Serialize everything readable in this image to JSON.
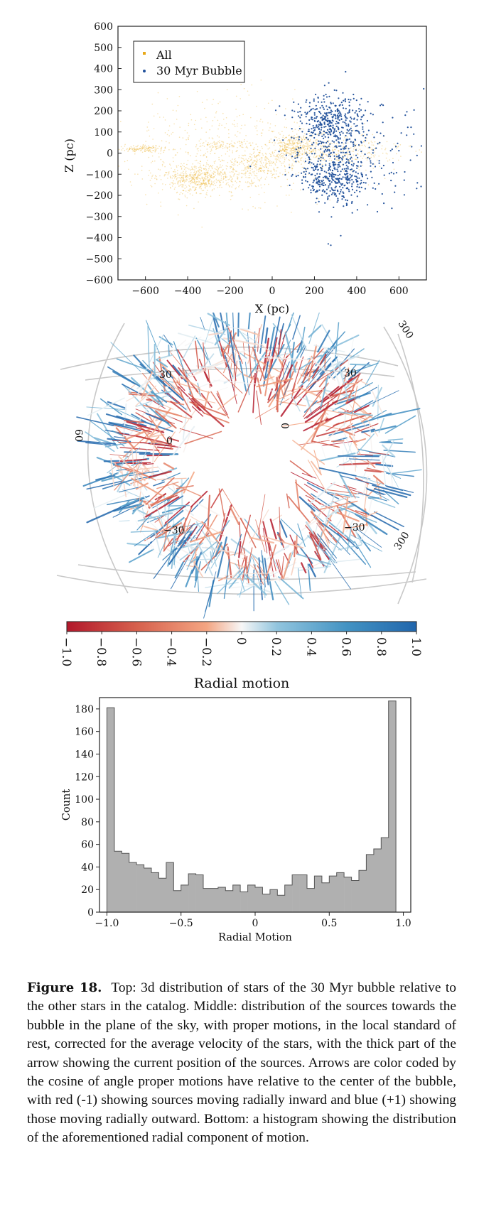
{
  "figure": {
    "caption_label": "Figure 18.",
    "caption_text": "Top: 3d distribution of stars of the 30 Myr bubble relative to the other stars in the catalog. Middle: distribution of the sources towards the bubble in the plane of the sky, with proper motions, in the local standard of rest, corrected for the average velocity of the stars, with the thick part of the arrow showing the current position of the sources. Arrows are color coded by the cosine of angle proper motions have relative to the center of the bubble, with red (-1) showing sources moving radially inward and blue (+1) showing those moving radially outward. Bottom: a histogram showing the distribution of the aforementioned radial component of motion."
  },
  "colors": {
    "all": "#e8a818",
    "bubble": "#1f4f9a",
    "hist_fill": "#b0b0b0",
    "red": "#b2182b",
    "blue": "#2166ac"
  },
  "chart_data": [
    {
      "type": "scatter",
      "xlabel": "X (pc)",
      "ylabel": "Z (pc)",
      "xlim": [
        -730,
        730
      ],
      "ylim": [
        -600,
        600
      ],
      "xticks": [
        "−600",
        "−400",
        "−200",
        "0",
        "200",
        "400",
        "600"
      ],
      "xtick_values": [
        -600,
        -400,
        -200,
        0,
        200,
        400,
        600
      ],
      "yticks": [
        "600",
        "500",
        "400",
        "300",
        "200",
        "100",
        "0",
        "−100",
        "−200",
        "−300",
        "−400",
        "−500",
        "−600"
      ],
      "ytick_values": [
        600,
        500,
        400,
        300,
        200,
        100,
        0,
        -100,
        -200,
        -300,
        -400,
        -500,
        -600
      ],
      "legend_position": "top-left",
      "series": [
        {
          "name": "All",
          "clusters": [
            {
              "x": -350,
              "z": -120,
              "sx": 90,
              "sz": 35,
              "n": 500
            },
            {
              "x": -80,
              "z": -60,
              "sx": 70,
              "sz": 40,
              "n": 260
            },
            {
              "x": 100,
              "z": 30,
              "sx": 50,
              "sz": 30,
              "n": 300
            },
            {
              "x": 300,
              "z": 10,
              "sx": 150,
              "sz": 40,
              "n": 350
            },
            {
              "x": -600,
              "z": 20,
              "sx": 60,
              "sz": 8,
              "n": 120
            },
            {
              "x": -200,
              "z": 0,
              "sx": 250,
              "sz": 120,
              "n": 550
            },
            {
              "x": -250,
              "z": 40,
              "sx": 60,
              "sz": 10,
              "n": 80
            }
          ]
        },
        {
          "name": "30 Myr Bubble",
          "clusters": [
            {
              "x": 270,
              "z": 140,
              "sx": 80,
              "sz": 70,
              "n": 380
            },
            {
              "x": 290,
              "z": -120,
              "sx": 80,
              "sz": 60,
              "n": 360
            },
            {
              "x": 400,
              "z": 0,
              "sx": 160,
              "sz": 130,
              "n": 170
            }
          ]
        }
      ]
    },
    {
      "type": "quiver",
      "colorbar_label": "Radial motion",
      "colorbar_range": [
        -1.0,
        1.0
      ],
      "colorbar_ticks": [
        "−1.0",
        "−0.8",
        "−0.6",
        "−0.4",
        "−0.2",
        "0",
        "0.2",
        "0.4",
        "0.6",
        "0.8",
        "1.0"
      ],
      "colorbar_tick_values": [
        -1.0,
        -0.8,
        -0.6,
        -0.4,
        -0.2,
        0,
        0.2,
        0.4,
        0.6,
        0.8,
        1.0
      ],
      "grid_labels": [
        "30",
        "30",
        "0",
        "0",
        "60",
        "−30",
        "−30",
        "300",
        "300"
      ]
    },
    {
      "type": "bar",
      "xlabel": "Radial Motion",
      "ylabel": "Count",
      "xlim": [
        -1.05,
        1.05
      ],
      "ylim": [
        0,
        190
      ],
      "xticks": [
        "−1.0",
        "−0.5",
        "0",
        "0.5",
        "1.0"
      ],
      "xtick_values": [
        -1.0,
        -0.5,
        0,
        0.5,
        1.0
      ],
      "yticks": [
        "0",
        "20",
        "40",
        "60",
        "80",
        "100",
        "120",
        "140",
        "160",
        "180"
      ],
      "ytick_values": [
        0,
        20,
        40,
        60,
        80,
        100,
        120,
        140,
        160,
        180
      ],
      "bin_start": -1.0,
      "bin_width": 0.05,
      "values": [
        181,
        54,
        52,
        44,
        42,
        39,
        35,
        30,
        44,
        19,
        24,
        34,
        33,
        21,
        21,
        22,
        19,
        24,
        18,
        24,
        22,
        16,
        20,
        15,
        24,
        33,
        33,
        21,
        32,
        26,
        32,
        35,
        31,
        28,
        37,
        51,
        56,
        66,
        187
      ]
    }
  ]
}
